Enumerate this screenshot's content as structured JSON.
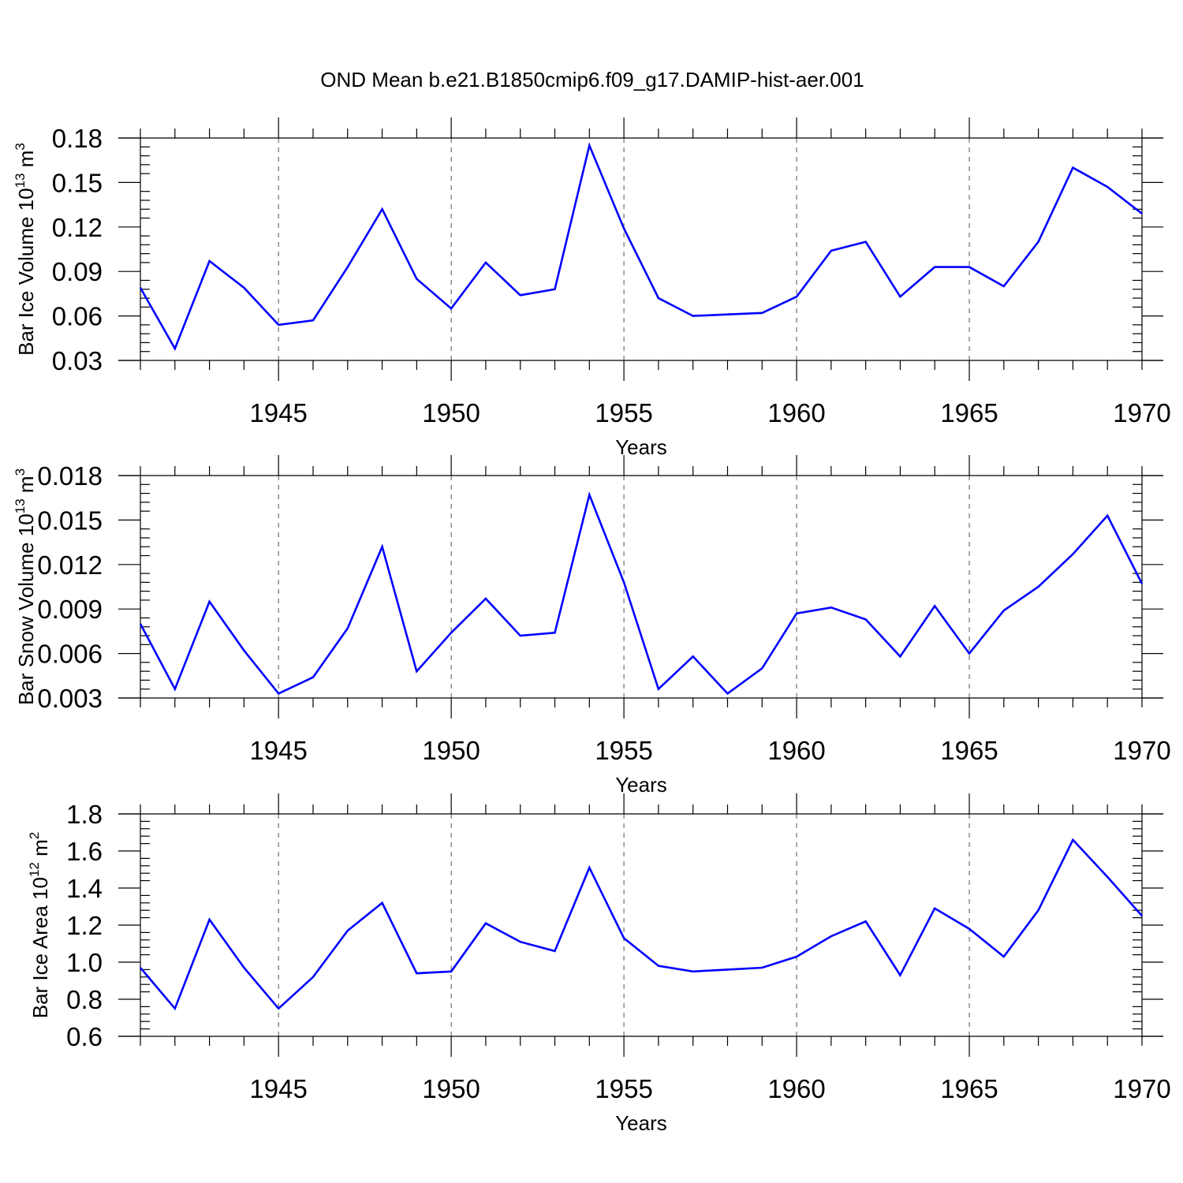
{
  "title": "OND Mean b.e21.B1850cmip6.f09_g17.DAMIP-hist-aer.001",
  "colors": {
    "series": "#0000ff",
    "axes": "#000000",
    "grid": "#555555"
  },
  "chart_data": [
    {
      "type": "line",
      "xlabel": "Years",
      "ylabel": {
        "text": "Bar Ice Volume 10",
        "sup": "13",
        "unit": " m",
        "unit_sup": "3"
      },
      "xlim": [
        1941,
        1970
      ],
      "ylim": [
        0.03,
        0.18
      ],
      "xticks": [
        "1945",
        "1950",
        "1955",
        "1960",
        "1965",
        "1970"
      ],
      "yticks": [
        "0.03",
        "0.06",
        "0.09",
        "0.12",
        "0.15",
        "0.18"
      ],
      "x": [
        1941,
        1942,
        1943,
        1944,
        1945,
        1946,
        1947,
        1948,
        1949,
        1950,
        1951,
        1952,
        1953,
        1954,
        1955,
        1956,
        1957,
        1958,
        1959,
        1960,
        1961,
        1962,
        1963,
        1964,
        1965,
        1966,
        1967,
        1968,
        1969,
        1970
      ],
      "values": [
        0.079,
        0.038,
        0.097,
        0.079,
        0.054,
        0.057,
        0.093,
        0.132,
        0.085,
        0.065,
        0.096,
        0.074,
        0.078,
        0.175,
        0.119,
        0.072,
        0.06,
        0.061,
        0.062,
        0.073,
        0.104,
        0.11,
        0.073,
        0.093,
        0.093,
        0.08,
        0.11,
        0.16,
        0.147,
        0.129
      ],
      "grid": "vertical dashed at major x ticks"
    },
    {
      "type": "line",
      "xlabel": "Years",
      "ylabel": {
        "text": "Bar Snow Volume 10",
        "sup": "13",
        "unit": " m",
        "unit_sup": "3"
      },
      "xlim": [
        1941,
        1970
      ],
      "ylim": [
        0.003,
        0.018
      ],
      "xticks": [
        "1945",
        "1950",
        "1955",
        "1960",
        "1965",
        "1970"
      ],
      "yticks": [
        "0.003",
        "0.006",
        "0.009",
        "0.012",
        "0.015",
        "0.018"
      ],
      "x": [
        1941,
        1942,
        1943,
        1944,
        1945,
        1946,
        1947,
        1948,
        1949,
        1950,
        1951,
        1952,
        1953,
        1954,
        1955,
        1956,
        1957,
        1958,
        1959,
        1960,
        1961,
        1962,
        1963,
        1964,
        1965,
        1966,
        1967,
        1968,
        1969,
        1970
      ],
      "values": [
        0.008,
        0.0036,
        0.0095,
        0.0062,
        0.0033,
        0.0044,
        0.0077,
        0.0132,
        0.0048,
        0.0074,
        0.0097,
        0.0072,
        0.0074,
        0.0167,
        0.0108,
        0.0036,
        0.0058,
        0.0033,
        0.005,
        0.0087,
        0.0091,
        0.0083,
        0.0058,
        0.0092,
        0.006,
        0.0089,
        0.0105,
        0.0127,
        0.0153,
        0.0107
      ],
      "grid": "vertical dashed at major x ticks"
    },
    {
      "type": "line",
      "xlabel": "Years",
      "ylabel": {
        "text": "Bar Ice Area 10",
        "sup": "12",
        "unit": " m",
        "unit_sup": "2"
      },
      "xlim": [
        1941,
        1970
      ],
      "ylim": [
        0.6,
        1.8
      ],
      "xticks": [
        "1945",
        "1950",
        "1955",
        "1960",
        "1965",
        "1970"
      ],
      "yticks": [
        "0.6",
        "0.8",
        "1.0",
        "1.2",
        "1.4",
        "1.6",
        "1.8"
      ],
      "x": [
        1941,
        1942,
        1943,
        1944,
        1945,
        1946,
        1947,
        1948,
        1949,
        1950,
        1951,
        1952,
        1953,
        1954,
        1955,
        1956,
        1957,
        1958,
        1959,
        1960,
        1961,
        1962,
        1963,
        1964,
        1965,
        1966,
        1967,
        1968,
        1969,
        1970
      ],
      "values": [
        0.97,
        0.75,
        1.23,
        0.97,
        0.75,
        0.92,
        1.17,
        1.32,
        0.94,
        0.95,
        1.21,
        1.11,
        1.06,
        1.51,
        1.13,
        0.98,
        0.95,
        0.96,
        0.97,
        1.03,
        1.14,
        1.22,
        0.93,
        1.29,
        1.18,
        1.03,
        1.28,
        1.66,
        1.46,
        1.25
      ],
      "grid": "vertical dashed at major x ticks"
    }
  ]
}
